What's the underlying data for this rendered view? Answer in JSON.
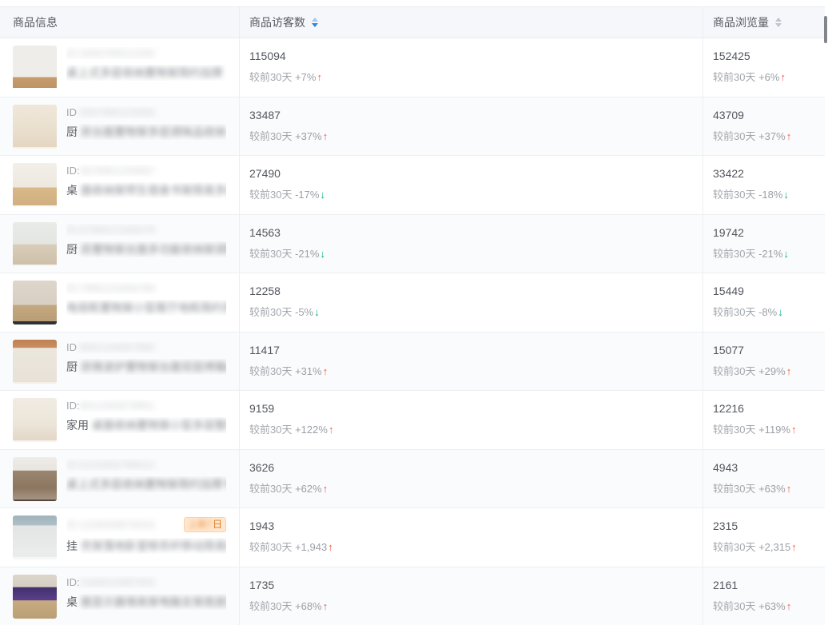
{
  "table": {
    "columns": [
      {
        "label": "商品信息",
        "sortable": false,
        "sort_state": "none"
      },
      {
        "label": "商品访客数",
        "sortable": true,
        "sort_state": "active-descending"
      },
      {
        "label": "商品浏览量",
        "sortable": true,
        "sort_state": "inactive"
      }
    ],
    "compare_label": "较前30天",
    "products": [
      {
        "thumb": "white-shelf-on-wood-floor",
        "id_label": "",
        "id_blurred": "ID:3456789012345",
        "title_prefix": "",
        "title_blurred": "桌上式多层收纳置物架简约加厚",
        "title_suffix": "...",
        "visitors": {
          "value": "115094",
          "delta": "+7%",
          "trend": "up"
        },
        "views": {
          "value": "152425",
          "delta": "+6%",
          "trend": "up"
        }
      },
      {
        "thumb": "desktop-organizer-beige",
        "id_label": "ID",
        "id_blurred": ":4567890123456",
        "title_prefix": "厨",
        "title_blurred": "房台面置物架多层调味品收纳",
        "title_suffix": "柜...",
        "visitors": {
          "value": "33487",
          "delta": "+37%",
          "trend": "up"
        },
        "views": {
          "value": "43709",
          "delta": "+37%",
          "trend": "up"
        }
      },
      {
        "thumb": "wood-white-frame-shelf",
        "id_label": "ID:",
        "id_blurred": "5678901234567",
        "title_prefix": "桌",
        "title_blurred": "面收纳架师生宿舍书架简易多层置物架",
        "title_suffix": "",
        "visitors": {
          "value": "27490",
          "delta": "-17%",
          "trend": "down"
        },
        "views": {
          "value": "33422",
          "delta": "-18%",
          "trend": "down"
        }
      },
      {
        "thumb": "white-kitchen-rack",
        "id_label": "",
        "id_blurred": "ID:6789012345678",
        "title_prefix": "厨",
        "title_blurred": "房置物架台面多功能收纳架调料架子",
        "title_suffix": "",
        "visitors": {
          "value": "14563",
          "delta": "-21%",
          "trend": "down"
        },
        "views": {
          "value": "19742",
          "delta": "-21%",
          "trend": "down"
        }
      },
      {
        "thumb": "tv-stand-room-scene",
        "id_label": "",
        "id_blurred": "ID:7890123456789",
        "title_prefix": "",
        "title_blurred": "电视柜置物架小型客厅地柜简约现代落地",
        "title_suffix": "",
        "visitors": {
          "value": "12258",
          "delta": "-5%",
          "trend": "down"
        },
        "views": {
          "value": "15449",
          "delta": "-8%",
          "trend": "down"
        }
      },
      {
        "thumb": "kitchen-rack-with-label",
        "id_label": "ID",
        "id_blurred": ":8901234567890",
        "title_prefix": "厨",
        "title_blurred": "房微波炉置物架台面双层烤箱收纳架子",
        "title_suffix": "",
        "visitors": {
          "value": "11417",
          "delta": "+31%",
          "trend": "up"
        },
        "views": {
          "value": "15077",
          "delta": "+29%",
          "trend": "up"
        }
      },
      {
        "thumb": "home-shelf-beige",
        "id_label": "ID:",
        "id_blurred": "9012345678901",
        "title_prefix": "家用",
        "title_blurred": "桌面收纳置物架小型多层整理架子",
        "title_suffix": "",
        "visitors": {
          "value": "9159",
          "delta": "+122%",
          "trend": "up"
        },
        "views": {
          "value": "12216",
          "delta": "+119%",
          "trend": "up"
        }
      },
      {
        "thumb": "dark-metal-storage-rack",
        "id_label": "",
        "id_blurred": "ID:0123456789012",
        "title_prefix": "",
        "title_blurred": "桌上式多层收纳置物架简约加厚书架",
        "title_suffix": "",
        "visitors": {
          "value": "3626",
          "delta": "+62%",
          "trend": "up"
        },
        "views": {
          "value": "4943",
          "delta": "+63%",
          "trend": "up"
        }
      },
      {
        "thumb": "clothes-hanging-rack",
        "id_label": "",
        "id_blurred": "ID:1234509876543",
        "title_prefix": "挂",
        "title_blurred": "衣架落地卧室晾衣杆移动简易挂",
        "title_suffix": "钩...",
        "badge": {
          "blurred": "上新7",
          "visible": "日"
        },
        "visitors": {
          "value": "1943",
          "delta": "+1,943",
          "trend": "up"
        },
        "views": {
          "value": "2315",
          "delta": "+2,315",
          "trend": "up"
        }
      },
      {
        "thumb": "monitor-stand-purple-screen",
        "id_label": "ID:",
        "id_blurred": "2345610987654",
        "title_prefix": "桌",
        "title_blurred": "面显示器增高架电脑支架底座置物架",
        "title_suffix": "",
        "visitors": {
          "value": "1735",
          "delta": "+68%",
          "trend": "up"
        },
        "views": {
          "value": "2161",
          "delta": "+63%",
          "trend": "up"
        }
      }
    ]
  },
  "icons": {
    "sort_caret": "caret-up-down",
    "arrow_up": "↑",
    "arrow_down": "↓"
  },
  "colors": {
    "accent_blue": "#2f87d8",
    "trend_up_red": "#f15b44",
    "trend_down_green": "#00b578",
    "header_bg": "#f6f7fa",
    "row_alt_bg": "#fafbfc",
    "border": "#eceff3"
  }
}
